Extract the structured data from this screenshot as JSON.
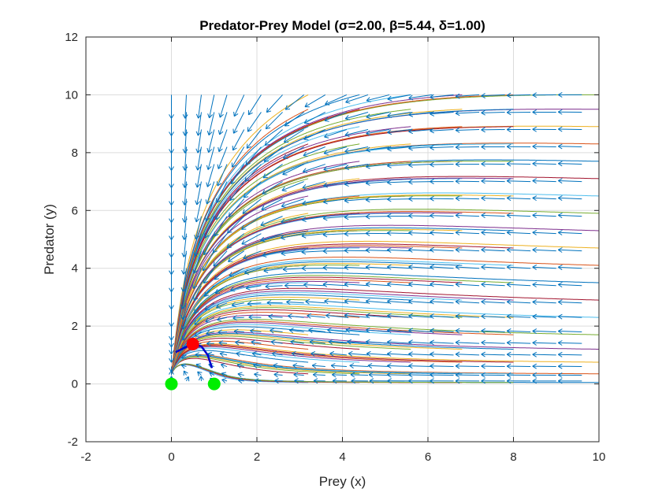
{
  "chart_data": {
    "type": "line",
    "title": "Predator-Prey Model (σ=2.00, β=5.44, δ=1.00)",
    "xlabel": "Prey (x)",
    "ylabel": "Predator (y)",
    "xlim": [
      -2,
      10
    ],
    "ylim": [
      -2,
      12
    ],
    "xticks": [
      -2,
      0,
      2,
      4,
      6,
      8,
      10
    ],
    "yticks": [
      -2,
      0,
      2,
      4,
      6,
      8,
      10,
      12
    ],
    "grid": true,
    "legend": "none",
    "params": {
      "sigma": 2.0,
      "beta": 5.44,
      "delta": 1.0
    },
    "line_colors": [
      "#0072BD",
      "#D95319",
      "#EDB120",
      "#7E2F8E",
      "#77AC30",
      "#4DBEEE",
      "#A2142F"
    ],
    "quiver_color": "#0072BD",
    "equilibria": [
      {
        "x": 0,
        "y": 0,
        "color": "#00EE00",
        "kind": "saddle"
      },
      {
        "x": 1,
        "y": 0,
        "color": "#00EE00",
        "kind": "saddle"
      },
      {
        "x": 0.5,
        "y": 1.38,
        "color": "#FF0000",
        "kind": "interior"
      }
    ],
    "interior_trajectory": {
      "color": "#0000CC",
      "points": [
        [
          0.1,
          1.1
        ],
        [
          0.3,
          1.25
        ],
        [
          0.5,
          1.38
        ],
        [
          0.7,
          1.3
        ],
        [
          0.85,
          1.0
        ],
        [
          0.95,
          0.55
        ]
      ]
    },
    "quiver_x": [
      0,
      1,
      2,
      3,
      4,
      5,
      6,
      7,
      8,
      9,
      10
    ],
    "quiver_y": [
      0,
      1,
      2,
      3,
      4,
      5,
      6,
      7,
      8,
      9,
      10
    ],
    "quiver_sample_x": [
      0,
      0.35,
      0.7,
      1,
      1.3,
      1.7,
      2.1,
      2.6,
      3.1,
      3.6,
      4.1,
      4.6,
      5.1,
      5.6,
      6.1,
      6.6,
      7.2,
      7.8,
      8.4,
      9,
      9.6
    ],
    "quiver_sample_y": [
      0.1,
      0.3,
      0.6,
      1.0,
      1.4,
      1.8,
      2.3,
      2.8,
      3.4,
      4.0,
      4.6,
      5.2,
      5.8,
      6.4,
      7.0,
      7.6,
      8.2,
      8.8,
      9.4,
      10.0
    ],
    "streamline_start_y": [
      0.05,
      0.35,
      0.75,
      1.2,
      1.7,
      2.3,
      2.9,
      3.5,
      4.1,
      4.7,
      5.3,
      5.9,
      6.5,
      7.1,
      7.7,
      8.3,
      8.9,
      9.5,
      10.0
    ],
    "streamline_start_x": [
      0,
      0.4,
      0.8,
      1.2,
      1.6,
      2.0
    ]
  }
}
